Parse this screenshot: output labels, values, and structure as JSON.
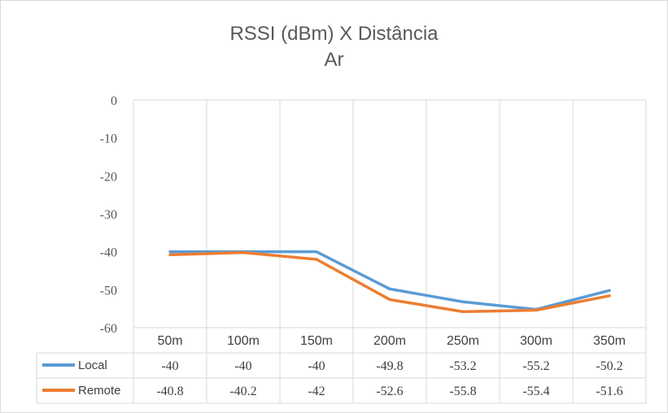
{
  "chart_data": {
    "type": "line",
    "title": "RSSI (dBm) X Distância",
    "subtitle": "Ar",
    "categories": [
      "50m",
      "100m",
      "150m",
      "200m",
      "250m",
      "300m",
      "350m"
    ],
    "series": [
      {
        "name": "Local",
        "color": "#5b9bd5",
        "values": [
          -40,
          -40,
          -40,
          -49.8,
          -53.2,
          -55.2,
          -50.2
        ]
      },
      {
        "name": "Remote",
        "color": "#ed7d31",
        "values": [
          -40.8,
          -40.2,
          -42,
          -52.6,
          -55.8,
          -55.4,
          -51.6
        ]
      }
    ],
    "value_labels": [
      [
        "-40",
        "-40",
        "-40",
        "-49.8",
        "-53.2",
        "-55.2",
        "-50.2"
      ],
      [
        "-40.8",
        "-40.2",
        "-42",
        "-52.6",
        "-55.8",
        "-55.4",
        "-51.6"
      ]
    ],
    "y_ticks": [
      "0",
      "-10",
      "-20",
      "-30",
      "-40",
      "-50",
      "-60"
    ],
    "ylim": [
      -60,
      0
    ],
    "grid": "vertical",
    "legend": "data-table",
    "xlabel": "",
    "ylabel": ""
  }
}
